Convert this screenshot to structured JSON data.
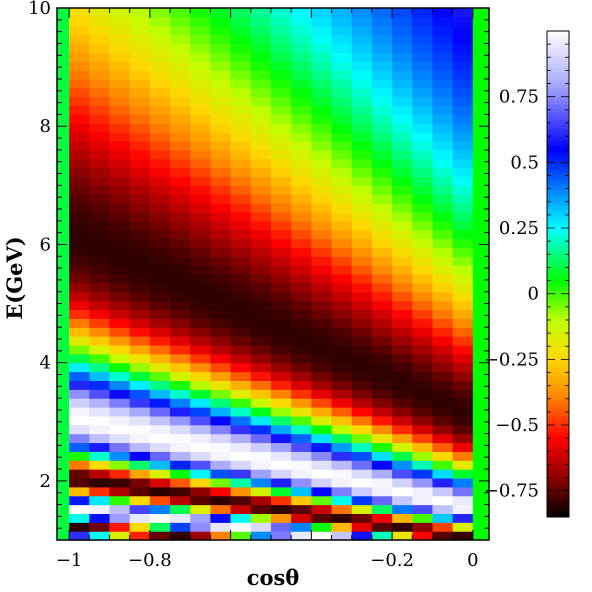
{
  "chart_data": {
    "type": "heatmap",
    "title": "",
    "xlabel": "cosθ",
    "ylabel": "E(GeV)",
    "xlim": [
      -1.03,
      0.04
    ],
    "ylim": [
      1.0,
      10.0
    ],
    "x_tick_labels": [
      {
        "value": -1,
        "label": "−1"
      },
      {
        "value": -0.8,
        "label": "−0.8"
      },
      {
        "value": -0.2,
        "label": "−0.2"
      },
      {
        "value": 0,
        "label": "0"
      }
    ],
    "y_tick_labels": [
      {
        "value": 2,
        "label": "2"
      },
      {
        "value": 4,
        "label": "4"
      },
      {
        "value": 6,
        "label": "6"
      },
      {
        "value": 8,
        "label": "8"
      },
      {
        "value": 10,
        "label": "10"
      }
    ],
    "colorbar": {
      "range": [
        -0.85,
        1.0
      ],
      "tick_labels": [
        {
          "value": 0.75,
          "label": "0.75"
        },
        {
          "value": 0.5,
          "label": "0.5"
        },
        {
          "value": 0.25,
          "label": "0.25"
        },
        {
          "value": 0,
          "label": "0"
        },
        {
          "value": -0.25,
          "label": "−0.25"
        },
        {
          "value": -0.5,
          "label": "−0.5"
        },
        {
          "value": -0.75,
          "label": "−0.75"
        }
      ],
      "colormap": [
        [
          -0.85,
          "#000000"
        ],
        [
          -0.7,
          "#8b0000"
        ],
        [
          -0.55,
          "#ff0000"
        ],
        [
          -0.4,
          "#ff8000"
        ],
        [
          -0.25,
          "#ffd700"
        ],
        [
          -0.1,
          "#c0ff00"
        ],
        [
          0.05,
          "#00ff00"
        ],
        [
          0.25,
          "#00ffff"
        ],
        [
          0.55,
          "#0000ff"
        ],
        [
          0.8,
          "#aaaaff"
        ],
        [
          1.0,
          "#ffffff"
        ]
      ]
    },
    "grid": {
      "x_bins": 20,
      "x_bin_edges": [
        -1.0,
        0.0
      ],
      "energy_bins": 60,
      "energy_range": [
        1.0,
        10.0
      ],
      "value_model": "0.1 + 0.9*cos(2*pi*1.55*(1 - cos(theta)) / E)",
      "value_model_note": "approximate reconstruction of the plotted cell values"
    }
  }
}
